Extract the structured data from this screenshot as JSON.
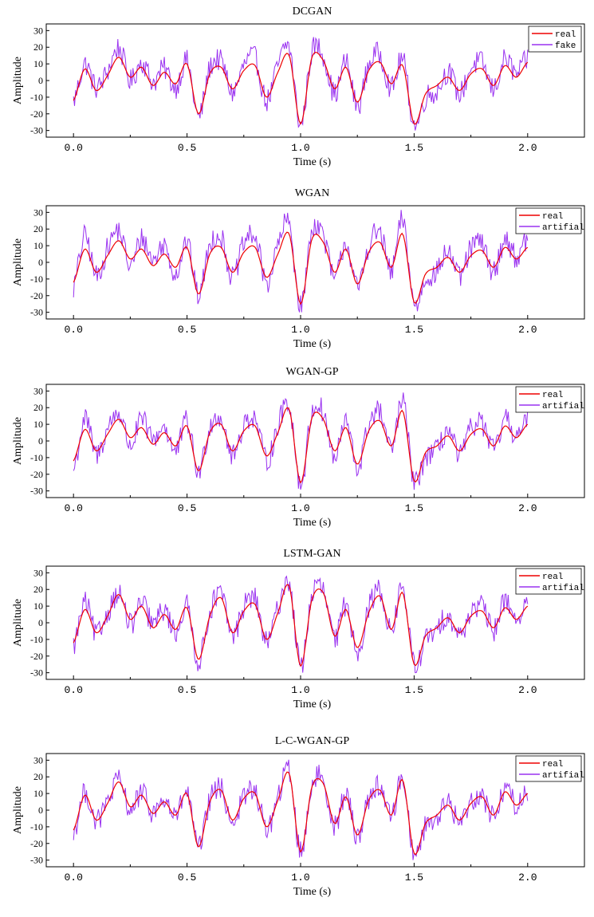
{
  "chart_data": [
    {
      "type": "line",
      "title": "DCGAN",
      "xlabel": "Time (s)",
      "ylabel": "Amplitude",
      "xlim": [
        -0.12,
        2.25
      ],
      "ylim": [
        -34,
        34
      ],
      "xticks": [
        0.0,
        0.5,
        1.0,
        1.5,
        2.0
      ],
      "xtick_labels": [
        "0.0",
        "0.5",
        "1.0",
        "1.5",
        "2.0"
      ],
      "yticks": [
        -30,
        -20,
        -10,
        0,
        10,
        20,
        30
      ],
      "ytick_labels": [
        "-30",
        "-20",
        "-10",
        "0",
        "10",
        "20",
        "30"
      ],
      "legend_position": "top-right",
      "colors": {
        "real": "#ee0000",
        "synthetic": "#9a32f0"
      },
      "series": [
        {
          "name": "real",
          "x": [
            0.0,
            0.05,
            0.1,
            0.15,
            0.2,
            0.25,
            0.3,
            0.35,
            0.4,
            0.45,
            0.5,
            0.55,
            0.6,
            0.65,
            0.7,
            0.75,
            0.8,
            0.85,
            0.9,
            0.95,
            1.0,
            1.05,
            1.1,
            1.15,
            1.2,
            1.25,
            1.3,
            1.35,
            1.4,
            1.45,
            1.5,
            1.55,
            1.6,
            1.65,
            1.7,
            1.75,
            1.8,
            1.85,
            1.9,
            1.95,
            2.0
          ],
          "values": [
            -12,
            7,
            -6,
            3,
            14,
            2,
            8,
            -3,
            5,
            -2,
            10,
            -20,
            4,
            8,
            -5,
            6,
            9,
            -10,
            5,
            15,
            -26,
            14,
            12,
            -5,
            8,
            -13,
            6,
            11,
            -2,
            9,
            -26,
            -8,
            -3,
            2,
            -6,
            4,
            7,
            -3,
            9,
            2,
            11
          ]
        },
        {
          "name": "fake",
          "x": [
            0.0,
            0.05,
            0.1,
            0.15,
            0.2,
            0.25,
            0.3,
            0.35,
            0.4,
            0.45,
            0.5,
            0.55,
            0.6,
            0.65,
            0.7,
            0.75,
            0.8,
            0.85,
            0.9,
            0.95,
            1.0,
            1.05,
            1.1,
            1.15,
            1.2,
            1.25,
            1.3,
            1.35,
            1.4,
            1.45,
            1.5,
            1.55,
            1.6,
            1.65,
            1.7,
            1.75,
            1.8,
            1.85,
            1.9,
            1.95,
            2.0
          ],
          "values": [
            -13,
            12,
            -3,
            8,
            24,
            -2,
            14,
            1,
            9,
            -6,
            13,
            -24,
            10,
            14,
            -9,
            11,
            17,
            -14,
            12,
            24,
            -28,
            20,
            18,
            -11,
            14,
            -18,
            12,
            19,
            -7,
            16,
            -28,
            -12,
            -9,
            8,
            -10,
            10,
            13,
            -7,
            16,
            5,
            15
          ]
        }
      ]
    },
    {
      "type": "line",
      "title": "WGAN",
      "xlabel": "Time (s)",
      "ylabel": "Amplitude",
      "xlim": [
        -0.12,
        2.25
      ],
      "ylim": [
        -34,
        34
      ],
      "xticks": [
        0.0,
        0.5,
        1.0,
        1.5,
        2.0
      ],
      "xtick_labels": [
        "0.0",
        "0.5",
        "1.0",
        "1.5",
        "2.0"
      ],
      "yticks": [
        -30,
        -20,
        -10,
        0,
        10,
        20,
        30
      ],
      "ytick_labels": [
        "-30",
        "-20",
        "-10",
        "0",
        "10",
        "20",
        "30"
      ],
      "legend_position": "top-right",
      "colors": {
        "real": "#ee0000",
        "synthetic": "#9a32f0"
      },
      "series": [
        {
          "name": "real",
          "x": [
            0.0,
            0.05,
            0.1,
            0.15,
            0.2,
            0.25,
            0.3,
            0.35,
            0.4,
            0.45,
            0.5,
            0.55,
            0.6,
            0.65,
            0.7,
            0.75,
            0.8,
            0.85,
            0.9,
            0.95,
            1.0,
            1.05,
            1.1,
            1.15,
            1.2,
            1.25,
            1.3,
            1.35,
            1.4,
            1.45,
            1.5,
            1.55,
            1.6,
            1.65,
            1.7,
            1.75,
            1.8,
            1.85,
            1.9,
            1.95,
            2.0
          ],
          "values": [
            -12,
            8,
            -6,
            4,
            13,
            2,
            8,
            -2,
            5,
            -3,
            9,
            -19,
            5,
            9,
            -6,
            6,
            9,
            -9,
            5,
            17,
            -25,
            14,
            12,
            -6,
            8,
            -13,
            6,
            12,
            -3,
            17,
            -24,
            -7,
            -3,
            3,
            -6,
            4,
            7,
            -3,
            9,
            2,
            9
          ]
        },
        {
          "name": "artifial",
          "x": [
            0.0,
            0.05,
            0.1,
            0.15,
            0.2,
            0.25,
            0.3,
            0.35,
            0.4,
            0.45,
            0.5,
            0.55,
            0.6,
            0.65,
            0.7,
            0.75,
            0.8,
            0.85,
            0.9,
            0.95,
            1.0,
            1.05,
            1.1,
            1.15,
            1.2,
            1.25,
            1.3,
            1.35,
            1.4,
            1.45,
            1.5,
            1.55,
            1.6,
            1.65,
            1.7,
            1.75,
            1.8,
            1.85,
            1.9,
            1.95,
            2.0
          ],
          "values": [
            -18,
            22,
            -10,
            12,
            24,
            -6,
            20,
            4,
            15,
            -10,
            15,
            -20,
            14,
            20,
            -12,
            15,
            20,
            -15,
            14,
            28,
            -28,
            24,
            20,
            -14,
            16,
            -18,
            14,
            22,
            -8,
            32,
            -26,
            -12,
            -8,
            10,
            -12,
            12,
            14,
            -8,
            18,
            4,
            18
          ]
        }
      ]
    },
    {
      "type": "line",
      "title": "WGAN-GP",
      "xlabel": "Time (s)",
      "ylabel": "Amplitude",
      "xlim": [
        -0.12,
        2.25
      ],
      "ylim": [
        -34,
        34
      ],
      "xticks": [
        0.0,
        0.5,
        1.0,
        1.5,
        2.0
      ],
      "xtick_labels": [
        "0.0",
        "0.5",
        "1.0",
        "1.5",
        "2.0"
      ],
      "yticks": [
        -30,
        -20,
        -10,
        0,
        10,
        20,
        30
      ],
      "ytick_labels": [
        "-30",
        "-20",
        "-10",
        "0",
        "10",
        "20",
        "30"
      ],
      "legend_position": "top-right",
      "colors": {
        "real": "#ee0000",
        "synthetic": "#9a32f0"
      },
      "series": [
        {
          "name": "real",
          "x": [
            0.0,
            0.05,
            0.1,
            0.15,
            0.2,
            0.25,
            0.3,
            0.35,
            0.4,
            0.45,
            0.5,
            0.55,
            0.6,
            0.65,
            0.7,
            0.75,
            0.8,
            0.85,
            0.9,
            0.95,
            1.0,
            1.05,
            1.1,
            1.15,
            1.2,
            1.25,
            1.3,
            1.35,
            1.4,
            1.45,
            1.5,
            1.55,
            1.6,
            1.65,
            1.7,
            1.75,
            1.8,
            1.85,
            1.9,
            1.95,
            2.0
          ],
          "values": [
            -12,
            7,
            -6,
            4,
            13,
            2,
            8,
            -2,
            5,
            -3,
            9,
            -18,
            5,
            10,
            -6,
            6,
            9,
            -9,
            5,
            19,
            -25,
            14,
            13,
            -6,
            8,
            -14,
            6,
            12,
            -3,
            18,
            -24,
            -7,
            -3,
            3,
            -6,
            4,
            7,
            -3,
            9,
            2,
            10
          ]
        },
        {
          "name": "artifial",
          "x": [
            0.0,
            0.05,
            0.1,
            0.15,
            0.2,
            0.25,
            0.3,
            0.35,
            0.4,
            0.45,
            0.5,
            0.55,
            0.6,
            0.65,
            0.7,
            0.75,
            0.8,
            0.85,
            0.9,
            0.95,
            1.0,
            1.05,
            1.1,
            1.15,
            1.2,
            1.25,
            1.3,
            1.35,
            1.4,
            1.45,
            1.5,
            1.55,
            1.6,
            1.65,
            1.7,
            1.75,
            1.8,
            1.85,
            1.9,
            1.95,
            2.0
          ],
          "values": [
            -22,
            18,
            -10,
            10,
            20,
            -6,
            16,
            3,
            12,
            -10,
            14,
            -20,
            12,
            17,
            -12,
            13,
            16,
            -14,
            12,
            25,
            -28,
            20,
            20,
            -14,
            15,
            -19,
            13,
            21,
            -8,
            29,
            -25,
            -12,
            -8,
            9,
            -12,
            10,
            13,
            -8,
            15,
            4,
            13
          ]
        }
      ]
    },
    {
      "type": "line",
      "title": "LSTM-GAN",
      "xlabel": "Time (s)",
      "ylabel": "Amplitude",
      "xlim": [
        -0.12,
        2.25
      ],
      "ylim": [
        -34,
        34
      ],
      "xticks": [
        0.0,
        0.5,
        1.0,
        1.5,
        2.0
      ],
      "xtick_labels": [
        "0.0",
        "0.5",
        "1.0",
        "1.5",
        "2.0"
      ],
      "yticks": [
        -30,
        -20,
        -10,
        0,
        10,
        20,
        30
      ],
      "ytick_labels": [
        "-30",
        "-20",
        "-10",
        "0",
        "10",
        "20",
        "30"
      ],
      "legend_position": "top-right",
      "colors": {
        "real": "#ee0000",
        "synthetic": "#9a32f0"
      },
      "series": [
        {
          "name": "real",
          "x": [
            0.0,
            0.05,
            0.1,
            0.15,
            0.2,
            0.25,
            0.3,
            0.35,
            0.4,
            0.45,
            0.5,
            0.55,
            0.6,
            0.65,
            0.7,
            0.75,
            0.8,
            0.85,
            0.9,
            0.95,
            1.0,
            1.05,
            1.1,
            1.15,
            1.2,
            1.25,
            1.3,
            1.35,
            1.4,
            1.45,
            1.5,
            1.55,
            1.6,
            1.65,
            1.7,
            1.75,
            1.8,
            1.85,
            1.9,
            1.95,
            2.0
          ],
          "values": [
            -12,
            8,
            -6,
            4,
            17,
            2,
            10,
            -3,
            5,
            -4,
            9,
            -22,
            4,
            15,
            -6,
            7,
            11,
            -10,
            6,
            22,
            -26,
            14,
            18,
            -8,
            8,
            -15,
            6,
            16,
            -4,
            18,
            -25,
            -8,
            -3,
            3,
            -6,
            4,
            7,
            -3,
            9,
            2,
            10
          ]
        },
        {
          "name": "artifial",
          "x": [
            0.0,
            0.05,
            0.1,
            0.15,
            0.2,
            0.25,
            0.3,
            0.35,
            0.4,
            0.45,
            0.5,
            0.55,
            0.6,
            0.65,
            0.7,
            0.75,
            0.8,
            0.85,
            0.9,
            0.95,
            1.0,
            1.05,
            1.1,
            1.15,
            1.2,
            1.25,
            1.3,
            1.35,
            1.4,
            1.45,
            1.5,
            1.55,
            1.6,
            1.65,
            1.7,
            1.75,
            1.8,
            1.85,
            1.9,
            1.95,
            2.0
          ],
          "values": [
            -16,
            15,
            -8,
            8,
            18,
            -4,
            13,
            1,
            10,
            -7,
            11,
            -24,
            8,
            19,
            -10,
            12,
            17,
            -14,
            11,
            26,
            -27,
            18,
            20,
            -12,
            13,
            -18,
            11,
            22,
            -6,
            24,
            -26,
            -12,
            -7,
            7,
            -10,
            9,
            11,
            -6,
            18,
            3,
            11
          ]
        }
      ]
    },
    {
      "type": "line",
      "title": "L-C-WGAN-GP",
      "xlabel": "Time (s)",
      "ylabel": "Amplitude",
      "xlim": [
        -0.12,
        2.25
      ],
      "ylim": [
        -34,
        34
      ],
      "xticks": [
        0.0,
        0.5,
        1.0,
        1.5,
        2.0
      ],
      "xtick_labels": [
        "0.0",
        "0.5",
        "1.0",
        "1.5",
        "2.0"
      ],
      "yticks": [
        -30,
        -20,
        -10,
        0,
        10,
        20,
        30
      ],
      "ytick_labels": [
        "-30",
        "-20",
        "-10",
        "0",
        "10",
        "20",
        "30"
      ],
      "legend_position": "top-right",
      "colors": {
        "real": "#ee0000",
        "synthetic": "#9a32f0"
      },
      "series": [
        {
          "name": "real",
          "x": [
            0.0,
            0.05,
            0.1,
            0.15,
            0.2,
            0.25,
            0.3,
            0.35,
            0.4,
            0.45,
            0.5,
            0.55,
            0.6,
            0.65,
            0.7,
            0.75,
            0.8,
            0.85,
            0.9,
            0.95,
            1.0,
            1.05,
            1.1,
            1.15,
            1.2,
            1.25,
            1.3,
            1.35,
            1.4,
            1.45,
            1.5,
            1.55,
            1.6,
            1.65,
            1.7,
            1.75,
            1.8,
            1.85,
            1.9,
            1.95,
            2.0
          ],
          "values": [
            -12,
            9,
            -6,
            4,
            17,
            2,
            9,
            -2,
            5,
            -3,
            10,
            -22,
            5,
            12,
            -6,
            7,
            10,
            -10,
            6,
            22,
            -25,
            14,
            16,
            -8,
            8,
            -15,
            6,
            12,
            -3,
            18,
            -26,
            -8,
            -3,
            3,
            -6,
            4,
            8,
            -3,
            11,
            3,
            10
          ]
        },
        {
          "name": "artifial",
          "x": [
            0.0,
            0.05,
            0.1,
            0.15,
            0.2,
            0.25,
            0.3,
            0.35,
            0.4,
            0.45,
            0.5,
            0.55,
            0.6,
            0.65,
            0.7,
            0.75,
            0.8,
            0.85,
            0.9,
            0.95,
            1.0,
            1.05,
            1.1,
            1.15,
            1.2,
            1.25,
            1.3,
            1.35,
            1.4,
            1.45,
            1.5,
            1.55,
            1.6,
            1.65,
            1.7,
            1.75,
            1.8,
            1.85,
            1.9,
            1.95,
            2.0
          ],
          "values": [
            -16,
            12,
            -7,
            6,
            18,
            -1,
            11,
            -1,
            7,
            -5,
            11,
            -24,
            6,
            13,
            -8,
            8,
            12,
            -12,
            7,
            26,
            -26,
            16,
            19,
            -10,
            10,
            -16,
            8,
            16,
            -4,
            20,
            -28,
            -10,
            -5,
            5,
            -8,
            6,
            9,
            -4,
            15,
            4,
            12
          ]
        }
      ]
    }
  ]
}
